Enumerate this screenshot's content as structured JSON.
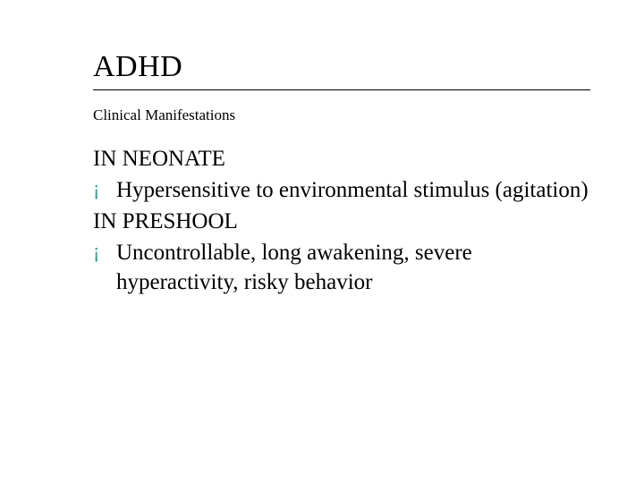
{
  "colors": {
    "background": "#ffffff",
    "text": "#000000",
    "rule": "#000000",
    "bullet": "#2a9a8f"
  },
  "typography": {
    "family": "Garamond / Times-like serif",
    "title_size_pt": 26,
    "subtitle_size_pt": 13,
    "body_size_pt": 19
  },
  "slide": {
    "title": "ADHD",
    "subtitle": "Clinical Manifestations",
    "sections": [
      {
        "heading": "IN NEONATE",
        "bullets": [
          "Hypersensitive to  environmental stimulus (agitation)"
        ]
      },
      {
        "heading": "IN PRESHOOL",
        "bullets": [
          "Uncontrollable, long awakening, severe hyperactivity, risky behavior"
        ]
      }
    ],
    "bullet_glyph": "¡"
  }
}
